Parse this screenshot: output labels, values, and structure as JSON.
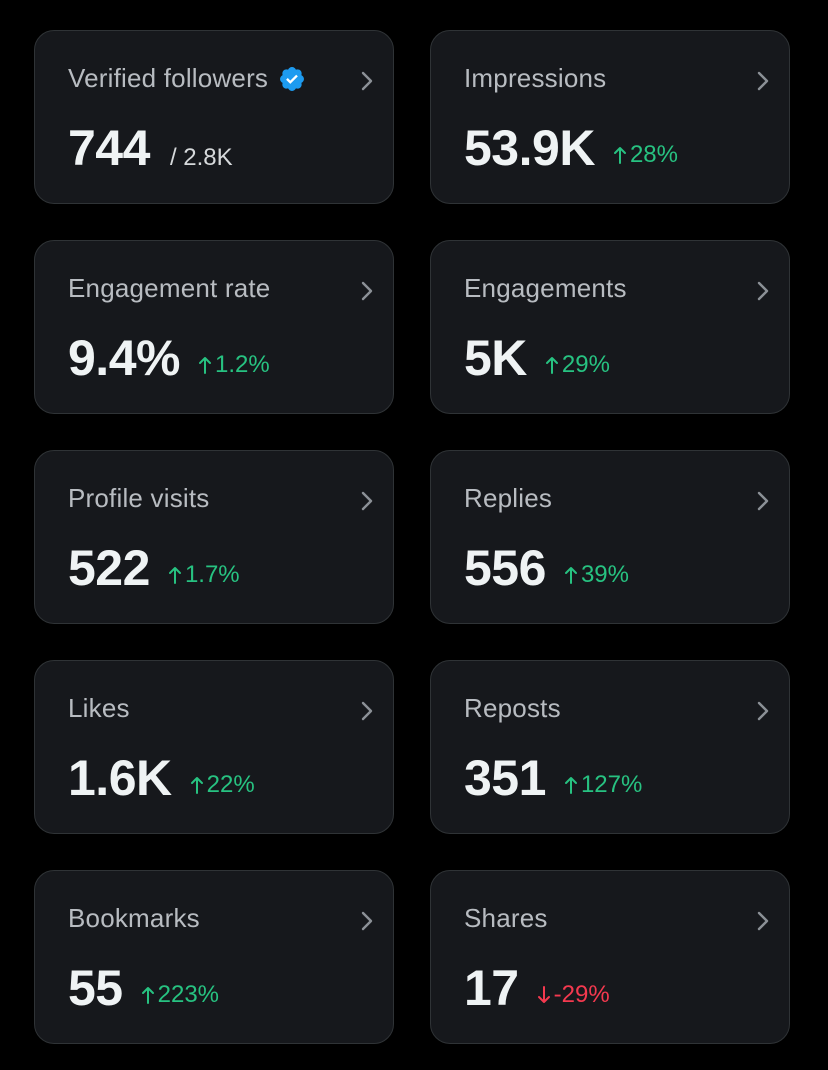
{
  "colors": {
    "background": "#000000",
    "card": "#16181c",
    "border": "#2f3336",
    "up": "#27c281",
    "down": "#f4394f",
    "verified": "#1d9bf0"
  },
  "cards": [
    {
      "label": "Verified followers",
      "value": "744",
      "sub": "/ 2.8K",
      "verified_icon": "verified-badge-icon"
    },
    {
      "label": "Impressions",
      "value": "53.9K",
      "delta": "28%",
      "direction": "up"
    },
    {
      "label": "Engagement rate",
      "value": "9.4%",
      "delta": "1.2%",
      "direction": "up"
    },
    {
      "label": "Engagements",
      "value": "5K",
      "delta": "29%",
      "direction": "up"
    },
    {
      "label": "Profile visits",
      "value": "522",
      "delta": "1.7%",
      "direction": "up"
    },
    {
      "label": "Replies",
      "value": "556",
      "delta": "39%",
      "direction": "up"
    },
    {
      "label": "Likes",
      "value": "1.6K",
      "delta": "22%",
      "direction": "up"
    },
    {
      "label": "Reposts",
      "value": "351",
      "delta": "127%",
      "direction": "up"
    },
    {
      "label": "Bookmarks",
      "value": "55",
      "delta": "223%",
      "direction": "up"
    },
    {
      "label": "Shares",
      "value": "17",
      "delta": "-29%",
      "direction": "down"
    }
  ]
}
